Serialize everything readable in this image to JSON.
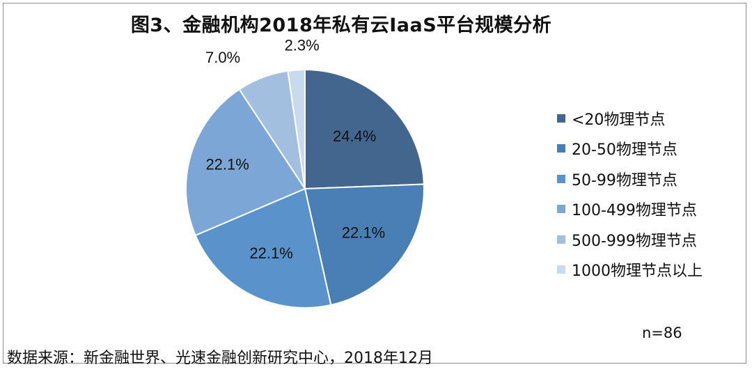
{
  "chart_data": {
    "type": "pie",
    "title": "图3、金融机构2018年私有云IaaS平台规模分析",
    "categories": [
      "<20物理节点",
      "20-50物理节点",
      "50-99物理节点",
      "100-499物理节点",
      "500-999物理节点",
      "1000物理节点以上"
    ],
    "values": [
      24.4,
      22.1,
      22.1,
      22.1,
      7.0,
      2.3
    ],
    "data_labels": [
      "24.4%",
      "22.1%",
      "22.1%",
      "22.1%",
      "7.0%",
      "2.3%"
    ],
    "colors": [
      "#43668f",
      "#4a7fb5",
      "#5a93cc",
      "#7ba6d6",
      "#a3bfe0",
      "#c9d9ee"
    ],
    "legend_position": "right",
    "start_angle_deg": 0,
    "direction": "clockwise"
  },
  "note": "n=86",
  "source": "数据来源：新金融世界、光速金融创新研究中心，2018年12月"
}
